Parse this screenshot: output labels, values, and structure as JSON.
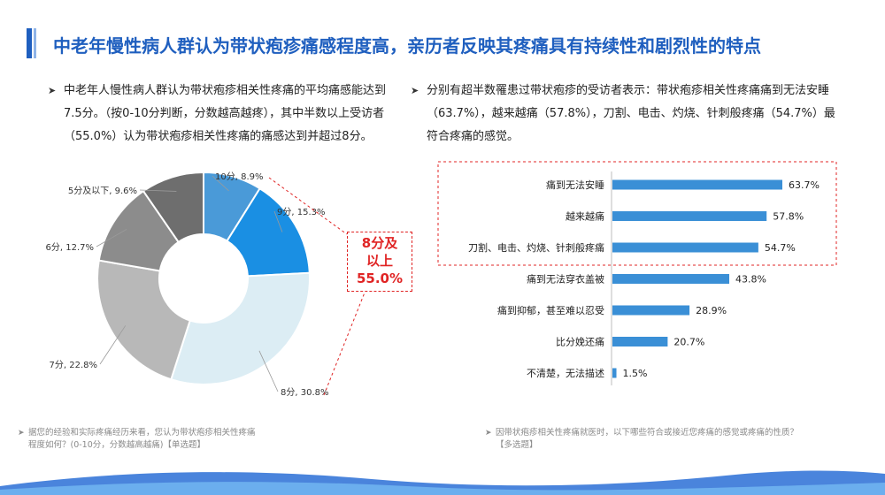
{
  "page": {
    "title": "中老年慢性病人群认为带状疱疹痛感程度高，亲历者反映其疼痛具有持续性和剧烈性的特点",
    "accent_color": "#1f5fbf",
    "highlight_color": "#e02424"
  },
  "left": {
    "bullet": "中老年人慢性病人群认为带状疱疹相关性疼痛的平均痛感能达到7.5分。（按0-10分判断，分数越高越疼），其中半数以上受访者（55.0%）认为带状疱疹相关性疼痛的痛感达到并超过8分。",
    "callout_line1": "8分及",
    "callout_line2": "以上",
    "callout_line3": "55.0%",
    "footnote": "据您的经验和实际疼痛经历来看，您认为带状疱疹相关性疼痛程度如何？(0-10分，分数越高越痛)【单选题】"
  },
  "right": {
    "bullet": "分别有超半数罹患过带状疱疹的受访者表示：带状疱疹相关性疼痛痛到无法安睡（63.7%），越来越痛（57.8%），刀割、电击、灼烧、针刺般疼痛（54.7%）最符合疼痛的感觉。",
    "footnote": "因带状疱疹相关性疼痛就医时，以下哪些符合或接近您疼痛的感觉或疼痛的性质？【多选题】"
  },
  "chart_data": [
    {
      "type": "pie",
      "subtype": "donut",
      "slices": [
        {
          "label": "10分, 8.9%",
          "value": 8.9,
          "color": "#4a9ad8"
        },
        {
          "label": "9分, 15.3%",
          "value": 15.3,
          "color": "#1a8fe3"
        },
        {
          "label": "8分, 30.8%",
          "value": 30.8,
          "color": "#dcedf4"
        },
        {
          "label": "7分, 22.8%",
          "value": 22.8,
          "color": "#b8b8b8"
        },
        {
          "label": "6分, 12.7%",
          "value": 12.7,
          "color": "#8c8c8c"
        },
        {
          "label": "5分及以下, 9.6%",
          "value": 9.6,
          "color": "#6e6e6e"
        }
      ]
    },
    {
      "type": "bar",
      "orientation": "horizontal",
      "categories": [
        "痛到无法安睡",
        "越来越痛",
        "刀割、电击、灼烧、针刺般疼痛",
        "痛到无法穿衣盖被",
        "痛到抑郁，甚至难以忍受",
        "比分娩还痛",
        "不清楚，无法描述"
      ],
      "values": [
        63.7,
        57.8,
        54.7,
        43.8,
        28.9,
        20.7,
        1.5
      ],
      "value_labels": [
        "63.7%",
        "57.8%",
        "54.7%",
        "43.8%",
        "28.9%",
        "20.7%",
        "1.5%"
      ],
      "highlighted_top": 3,
      "bar_color": "#3a8fd6"
    }
  ]
}
